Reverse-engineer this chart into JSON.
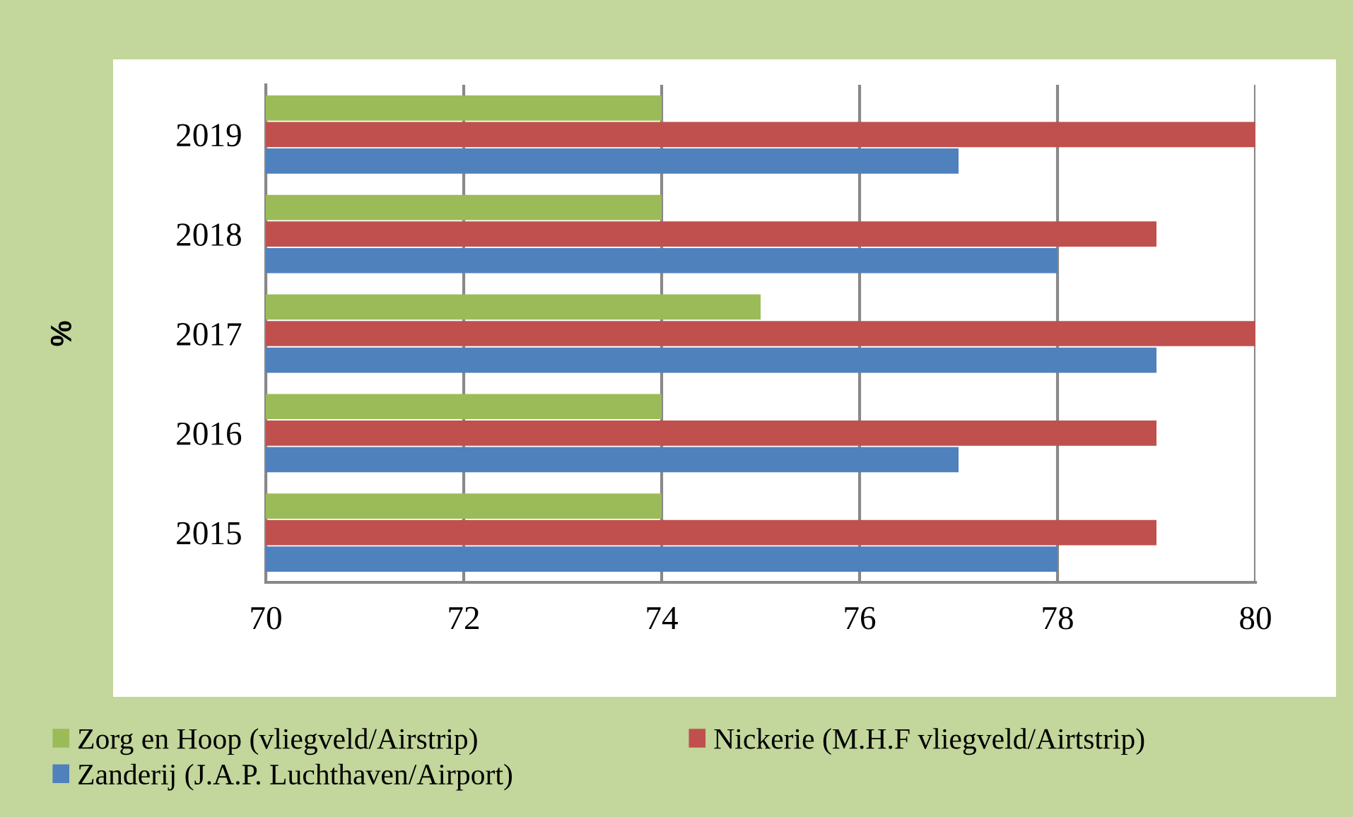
{
  "chart_data": {
    "type": "bar",
    "orientation": "horizontal",
    "ylabel": "%",
    "categories": [
      "2019",
      "2018",
      "2017",
      "2016",
      "2015"
    ],
    "series": [
      {
        "name": "Zorg en Hoop (vliegveld/Airstrip)",
        "color": "#9bbb59",
        "values": [
          74,
          74,
          75,
          74,
          74
        ]
      },
      {
        "name": "Nickerie (M.H.F vliegveld/Airtstrip)",
        "color": "#c0504d",
        "values": [
          80,
          79,
          80,
          79,
          79
        ]
      },
      {
        "name": "Zanderij (J.A.P. Luchthaven/Airport)",
        "color": "#4f81bd",
        "values": [
          77,
          78,
          79,
          77,
          78
        ]
      }
    ],
    "xlim": [
      70,
      80
    ],
    "xticks": [
      70,
      72,
      74,
      76,
      78,
      80
    ],
    "grid": "x",
    "legend": "bottom"
  }
}
